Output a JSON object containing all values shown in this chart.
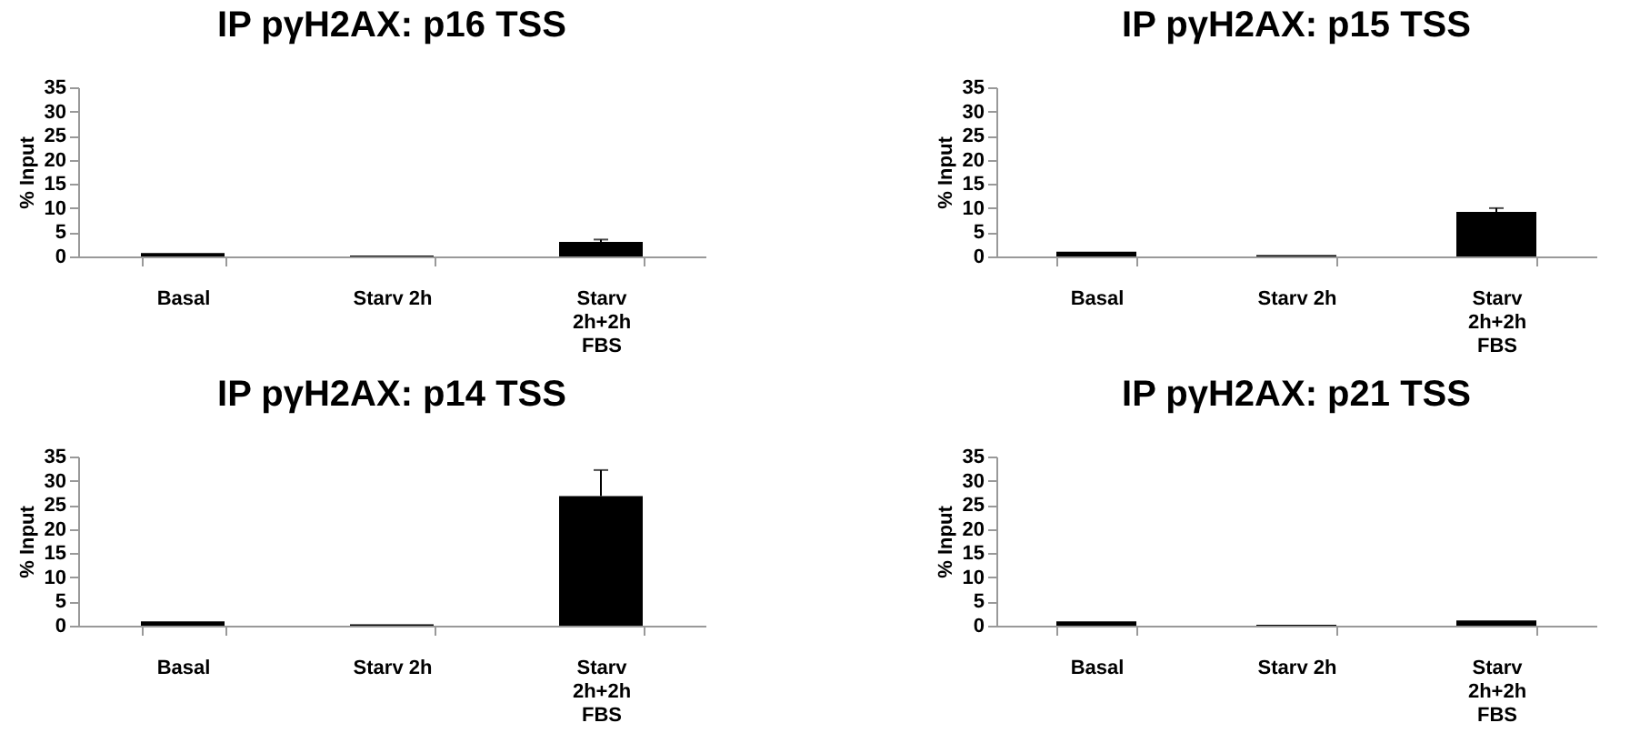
{
  "chart_data": [
    {
      "type": "bar",
      "title": "IP pγH2AX: p16 TSS",
      "ylabel": "% Input",
      "categories": [
        "Basal",
        "Starv 2h",
        "Starv 2h+2h FBS"
      ],
      "values": [
        0.7,
        0.2,
        3.0
      ],
      "errors": [
        null,
        null,
        [
          3.0,
          3.5
        ]
      ],
      "color": "#000000",
      "ylim": [
        0,
        35
      ],
      "yticks": [
        0,
        5,
        10,
        15,
        20,
        25,
        30,
        35
      ],
      "grid": false
    },
    {
      "type": "bar",
      "title": "IP pγH2AX: p15 TSS",
      "ylabel": "% Input",
      "categories": [
        "Basal",
        "Starv 2h",
        "Starv 2h+2h FBS"
      ],
      "values": [
        1.0,
        0.3,
        9.2
      ],
      "errors": [
        null,
        null,
        [
          9.2,
          10.0
        ]
      ],
      "color": "#000000",
      "ylim": [
        0,
        35
      ],
      "yticks": [
        0,
        5,
        10,
        15,
        20,
        25,
        30,
        35
      ],
      "grid": false
    },
    {
      "type": "bar",
      "title": "IP pγH2AX: p14 TSS",
      "ylabel": "% Input",
      "categories": [
        "Basal",
        "Starv 2h",
        "Starv 2h+2h FBS"
      ],
      "values": [
        0.9,
        0.3,
        26.8
      ],
      "errors": [
        null,
        null,
        [
          26.8,
          32.2
        ]
      ],
      "color": "#000000",
      "ylim": [
        0,
        35
      ],
      "yticks": [
        0,
        5,
        10,
        15,
        20,
        25,
        30,
        35
      ],
      "grid": false
    },
    {
      "type": "bar",
      "title": "IP pγH2AX: p21 TSS",
      "ylabel": "% Input",
      "categories": [
        "Basal",
        "Starv 2h",
        "Starv 2h+2h FBS"
      ],
      "values": [
        0.9,
        0.2,
        1.1
      ],
      "color": "#000000",
      "ylim": [
        0,
        35
      ],
      "yticks": [
        0,
        5,
        10,
        15,
        20,
        25,
        30,
        35
      ],
      "grid": false
    }
  ]
}
